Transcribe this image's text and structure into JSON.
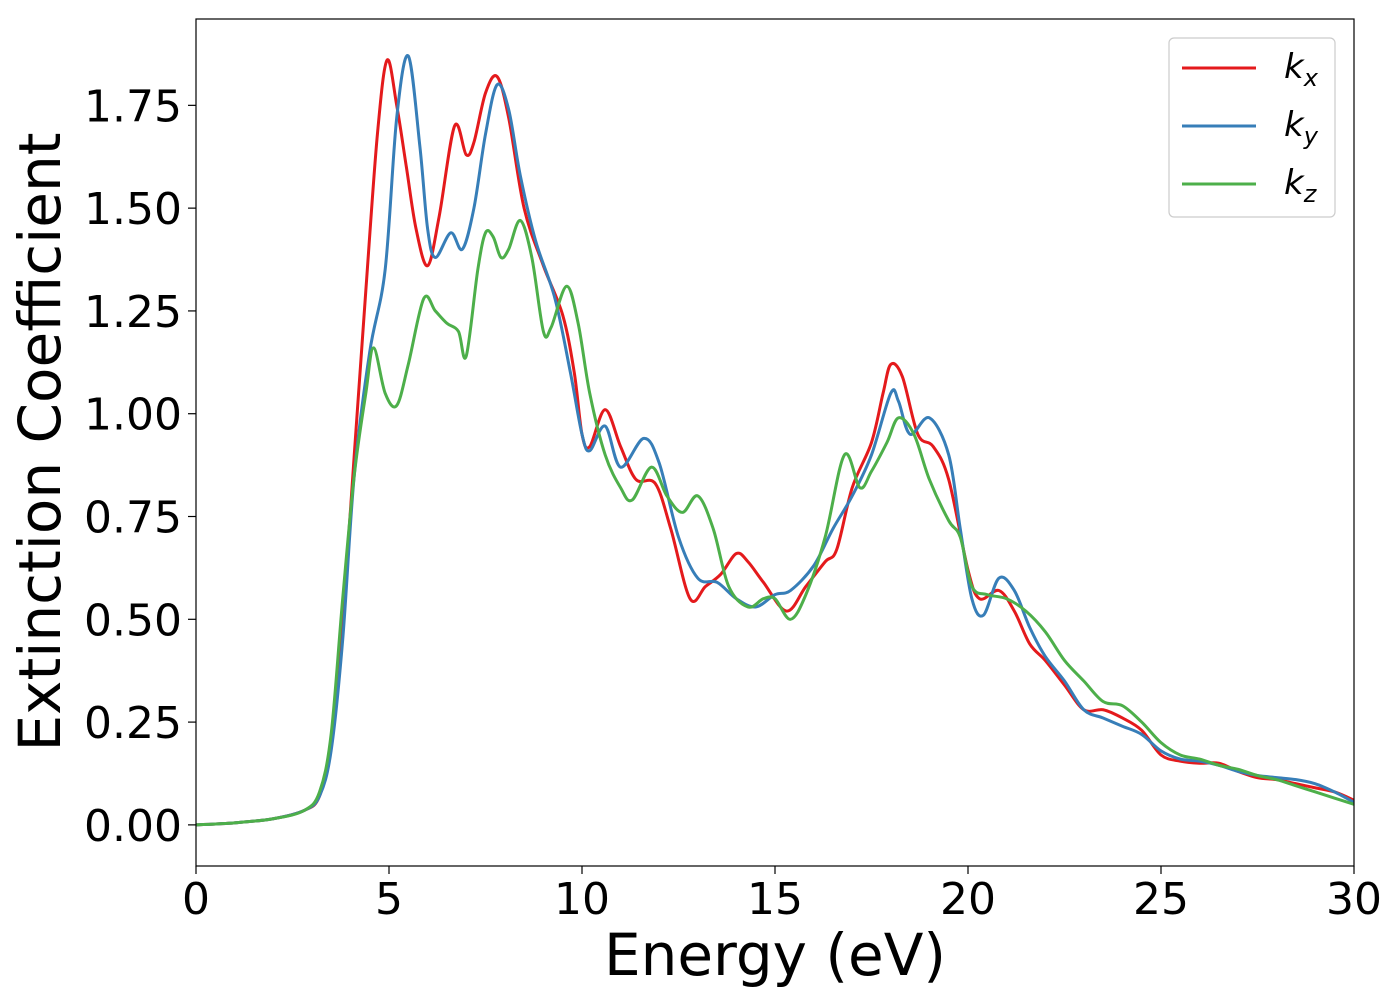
{
  "chart_data": {
    "type": "line",
    "title": "",
    "xlabel": "Energy (eV)",
    "ylabel": "Extinction Coefficient",
    "xlim": [
      0,
      30
    ],
    "ylim": [
      -0.1,
      1.96
    ],
    "xticks": [
      0,
      5,
      10,
      15,
      20,
      25,
      30
    ],
    "xtick_labels": [
      "0",
      "5",
      "10",
      "15",
      "20",
      "25",
      "30"
    ],
    "yticks": [
      0,
      0.25,
      0.5,
      0.75,
      1.0,
      1.25,
      1.5,
      1.75
    ],
    "ytick_labels": [
      "0.00",
      "0.25",
      "0.50",
      "0.75",
      "1.00",
      "1.25",
      "1.50",
      "1.75"
    ],
    "grid": false,
    "legend": "top-right",
    "series": [
      {
        "name": "k",
        "subscript": "x",
        "color": "#e41a1c",
        "points": [
          [
            0,
            0
          ],
          [
            1,
            0.005
          ],
          [
            2,
            0.015
          ],
          [
            2.8,
            0.035
          ],
          [
            3.2,
            0.07
          ],
          [
            3.5,
            0.2
          ],
          [
            3.8,
            0.5
          ],
          [
            4.1,
            0.9
          ],
          [
            4.4,
            1.3
          ],
          [
            4.7,
            1.68
          ],
          [
            4.95,
            1.86
          ],
          [
            5.2,
            1.75
          ],
          [
            5.45,
            1.6
          ],
          [
            5.7,
            1.45
          ],
          [
            6.0,
            1.36
          ],
          [
            6.3,
            1.48
          ],
          [
            6.7,
            1.7
          ],
          [
            7.0,
            1.63
          ],
          [
            7.2,
            1.66
          ],
          [
            7.5,
            1.78
          ],
          [
            7.8,
            1.82
          ],
          [
            8.1,
            1.72
          ],
          [
            8.5,
            1.5
          ],
          [
            9.0,
            1.36
          ],
          [
            9.5,
            1.24
          ],
          [
            9.8,
            1.1
          ],
          [
            10.0,
            0.95
          ],
          [
            10.2,
            0.92
          ],
          [
            10.6,
            1.01
          ],
          [
            11.0,
            0.92
          ],
          [
            11.4,
            0.84
          ],
          [
            11.9,
            0.83
          ],
          [
            12.3,
            0.72
          ],
          [
            12.8,
            0.55
          ],
          [
            13.2,
            0.58
          ],
          [
            13.6,
            0.61
          ],
          [
            14.0,
            0.66
          ],
          [
            14.3,
            0.64
          ],
          [
            14.7,
            0.59
          ],
          [
            15.3,
            0.52
          ],
          [
            15.8,
            0.58
          ],
          [
            16.3,
            0.64
          ],
          [
            16.6,
            0.67
          ],
          [
            17.0,
            0.82
          ],
          [
            17.5,
            0.93
          ],
          [
            17.8,
            1.05
          ],
          [
            18.0,
            1.12
          ],
          [
            18.3,
            1.09
          ],
          [
            18.7,
            0.95
          ],
          [
            19.1,
            0.92
          ],
          [
            19.5,
            0.84
          ],
          [
            20.0,
            0.62
          ],
          [
            20.3,
            0.55
          ],
          [
            20.8,
            0.57
          ],
          [
            21.2,
            0.52
          ],
          [
            21.6,
            0.44
          ],
          [
            22.0,
            0.4
          ],
          [
            22.5,
            0.34
          ],
          [
            23.0,
            0.28
          ],
          [
            23.5,
            0.28
          ],
          [
            24.0,
            0.26
          ],
          [
            24.5,
            0.23
          ],
          [
            25.0,
            0.17
          ],
          [
            25.5,
            0.155
          ],
          [
            26.0,
            0.15
          ],
          [
            26.5,
            0.15
          ],
          [
            27.0,
            0.13
          ],
          [
            27.5,
            0.115
          ],
          [
            28.0,
            0.11
          ],
          [
            28.5,
            0.1
          ],
          [
            29.0,
            0.09
          ],
          [
            29.5,
            0.08
          ],
          [
            30.0,
            0.06
          ]
        ]
      },
      {
        "name": "k",
        "subscript": "y",
        "color": "#377eb8",
        "points": [
          [
            0,
            0
          ],
          [
            1,
            0.005
          ],
          [
            2,
            0.015
          ],
          [
            2.8,
            0.035
          ],
          [
            3.2,
            0.07
          ],
          [
            3.5,
            0.18
          ],
          [
            3.8,
            0.45
          ],
          [
            4.1,
            0.85
          ],
          [
            4.5,
            1.15
          ],
          [
            4.9,
            1.35
          ],
          [
            5.2,
            1.72
          ],
          [
            5.5,
            1.87
          ],
          [
            5.8,
            1.65
          ],
          [
            6.0,
            1.45
          ],
          [
            6.2,
            1.38
          ],
          [
            6.6,
            1.44
          ],
          [
            6.9,
            1.4
          ],
          [
            7.2,
            1.5
          ],
          [
            7.5,
            1.68
          ],
          [
            7.8,
            1.8
          ],
          [
            8.1,
            1.74
          ],
          [
            8.4,
            1.58
          ],
          [
            8.8,
            1.42
          ],
          [
            9.3,
            1.28
          ],
          [
            9.7,
            1.1
          ],
          [
            10.0,
            0.95
          ],
          [
            10.2,
            0.91
          ],
          [
            10.6,
            0.97
          ],
          [
            11.0,
            0.87
          ],
          [
            11.6,
            0.94
          ],
          [
            12.0,
            0.88
          ],
          [
            12.5,
            0.7
          ],
          [
            13.0,
            0.6
          ],
          [
            13.5,
            0.59
          ],
          [
            14.0,
            0.55
          ],
          [
            14.5,
            0.53
          ],
          [
            15.0,
            0.56
          ],
          [
            15.4,
            0.57
          ],
          [
            16.0,
            0.63
          ],
          [
            16.5,
            0.72
          ],
          [
            17.0,
            0.8
          ],
          [
            17.5,
            0.9
          ],
          [
            18.0,
            1.05
          ],
          [
            18.2,
            1.03
          ],
          [
            18.5,
            0.95
          ],
          [
            19.0,
            0.99
          ],
          [
            19.5,
            0.9
          ],
          [
            19.8,
            0.72
          ],
          [
            20.1,
            0.55
          ],
          [
            20.4,
            0.51
          ],
          [
            20.8,
            0.6
          ],
          [
            21.2,
            0.57
          ],
          [
            21.6,
            0.48
          ],
          [
            22.0,
            0.41
          ],
          [
            22.5,
            0.35
          ],
          [
            23.0,
            0.28
          ],
          [
            23.5,
            0.26
          ],
          [
            24.0,
            0.24
          ],
          [
            24.5,
            0.22
          ],
          [
            25.0,
            0.18
          ],
          [
            25.5,
            0.16
          ],
          [
            26.0,
            0.155
          ],
          [
            26.5,
            0.145
          ],
          [
            27.0,
            0.13
          ],
          [
            27.5,
            0.12
          ],
          [
            28.0,
            0.115
          ],
          [
            28.5,
            0.11
          ],
          [
            29.0,
            0.1
          ],
          [
            29.5,
            0.08
          ],
          [
            30.0,
            0.055
          ]
        ]
      },
      {
        "name": "k",
        "subscript": "z",
        "color": "#4daf4a",
        "points": [
          [
            0,
            0
          ],
          [
            1,
            0.005
          ],
          [
            2,
            0.015
          ],
          [
            2.8,
            0.035
          ],
          [
            3.2,
            0.08
          ],
          [
            3.5,
            0.22
          ],
          [
            3.8,
            0.55
          ],
          [
            4.1,
            0.85
          ],
          [
            4.4,
            1.05
          ],
          [
            4.6,
            1.16
          ],
          [
            4.9,
            1.05
          ],
          [
            5.2,
            1.02
          ],
          [
            5.5,
            1.12
          ],
          [
            5.9,
            1.28
          ],
          [
            6.2,
            1.25
          ],
          [
            6.5,
            1.22
          ],
          [
            6.8,
            1.2
          ],
          [
            7.0,
            1.14
          ],
          [
            7.3,
            1.35
          ],
          [
            7.5,
            1.44
          ],
          [
            7.7,
            1.43
          ],
          [
            7.9,
            1.38
          ],
          [
            8.1,
            1.4
          ],
          [
            8.4,
            1.47
          ],
          [
            8.7,
            1.38
          ],
          [
            9.0,
            1.2
          ],
          [
            9.2,
            1.21
          ],
          [
            9.6,
            1.31
          ],
          [
            9.9,
            1.22
          ],
          [
            10.2,
            1.05
          ],
          [
            10.6,
            0.9
          ],
          [
            11.0,
            0.82
          ],
          [
            11.3,
            0.79
          ],
          [
            11.8,
            0.87
          ],
          [
            12.2,
            0.8
          ],
          [
            12.6,
            0.76
          ],
          [
            13.0,
            0.8
          ],
          [
            13.4,
            0.72
          ],
          [
            13.8,
            0.58
          ],
          [
            14.3,
            0.53
          ],
          [
            14.7,
            0.55
          ],
          [
            15.0,
            0.55
          ],
          [
            15.4,
            0.5
          ],
          [
            15.8,
            0.56
          ],
          [
            16.3,
            0.7
          ],
          [
            16.8,
            0.9
          ],
          [
            17.2,
            0.82
          ],
          [
            17.5,
            0.86
          ],
          [
            17.9,
            0.93
          ],
          [
            18.2,
            0.99
          ],
          [
            18.6,
            0.95
          ],
          [
            19.0,
            0.84
          ],
          [
            19.5,
            0.74
          ],
          [
            19.8,
            0.7
          ],
          [
            20.1,
            0.58
          ],
          [
            20.5,
            0.56
          ],
          [
            21.0,
            0.55
          ],
          [
            21.5,
            0.52
          ],
          [
            22.0,
            0.47
          ],
          [
            22.5,
            0.4
          ],
          [
            23.0,
            0.35
          ],
          [
            23.5,
            0.3
          ],
          [
            24.0,
            0.29
          ],
          [
            24.5,
            0.25
          ],
          [
            25.0,
            0.2
          ],
          [
            25.5,
            0.17
          ],
          [
            26.0,
            0.16
          ],
          [
            26.5,
            0.145
          ],
          [
            27.0,
            0.135
          ],
          [
            27.5,
            0.12
          ],
          [
            28.0,
            0.11
          ],
          [
            28.5,
            0.095
          ],
          [
            29.0,
            0.08
          ],
          [
            29.5,
            0.065
          ],
          [
            30.0,
            0.05
          ]
        ]
      }
    ]
  }
}
